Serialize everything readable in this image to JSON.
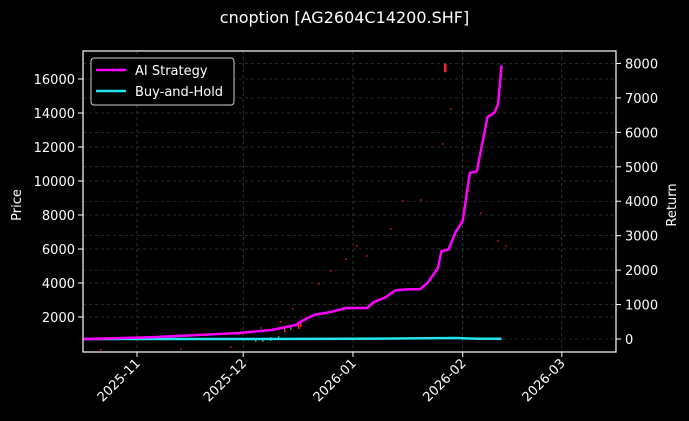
{
  "chart_data": {
    "type": "line",
    "title": "cnoption [AG2604C14200.SHF]",
    "xlabel": "",
    "ylabel": "Price",
    "ylabel_right": "Return",
    "x_ticks": [
      "2025-11",
      "2025-12",
      "2026-01",
      "2026-02",
      "2026-03"
    ],
    "y_ticks_left": [
      2000,
      4000,
      6000,
      8000,
      10000,
      12000,
      14000,
      16000
    ],
    "y_ticks_right": [
      0,
      1000,
      2000,
      3000,
      4000,
      5000,
      6000,
      7000,
      8000
    ],
    "ylim_left": [
      100,
      17700
    ],
    "ylim_right": [
      -350,
      8400
    ],
    "xlim": [
      "2025-10-17",
      "2026-03-16"
    ],
    "grid": true,
    "legend_position": "upper left",
    "series": [
      {
        "name": "AI Strategy",
        "color": "#ff00ff",
        "axis": "right",
        "x": [
          "2025-10-17",
          "2025-11-05",
          "2025-11-30",
          "2025-12-09",
          "2025-12-16",
          "2025-12-17",
          "2025-12-21",
          "2025-12-26",
          "2025-12-30",
          "2026-01-01",
          "2026-01-05",
          "2026-01-07",
          "2026-01-10",
          "2026-01-13",
          "2026-01-16",
          "2026-01-20",
          "2026-01-22",
          "2026-01-25",
          "2026-01-26",
          "2026-01-28",
          "2026-01-30",
          "2026-02-01",
          "2026-02-03",
          "2026-02-05",
          "2026-02-08",
          "2026-02-10",
          "2026-02-11",
          "2026-02-12"
        ],
        "values": [
          0,
          50,
          175,
          260,
          410,
          490,
          700,
          790,
          900,
          900,
          900,
          1080,
          1200,
          1410,
          1440,
          1450,
          1620,
          2060,
          2550,
          2600,
          3100,
          3430,
          4820,
          4870,
          6450,
          6570,
          6830,
          7950
        ]
      },
      {
        "name": "Buy-and-Hold",
        "color": "#22e5ee",
        "axis": "right",
        "x": [
          "2025-10-17",
          "2025-12-01",
          "2026-01-01",
          "2026-01-30",
          "2026-02-05",
          "2026-02-12"
        ],
        "values": [
          0,
          0,
          5,
          30,
          10,
          5
        ]
      }
    ],
    "price_markers": [
      {
        "date": "2026-01-27",
        "low": 16400,
        "high": 16900,
        "color": "#ff2020"
      }
    ]
  },
  "legend": {
    "items": [
      {
        "label": "AI Strategy",
        "color": "#ff00ff"
      },
      {
        "label": "Buy-and-Hold",
        "color": "#22e5ee"
      }
    ]
  },
  "axes": {
    "left_label": "Price",
    "right_label": "Return"
  }
}
